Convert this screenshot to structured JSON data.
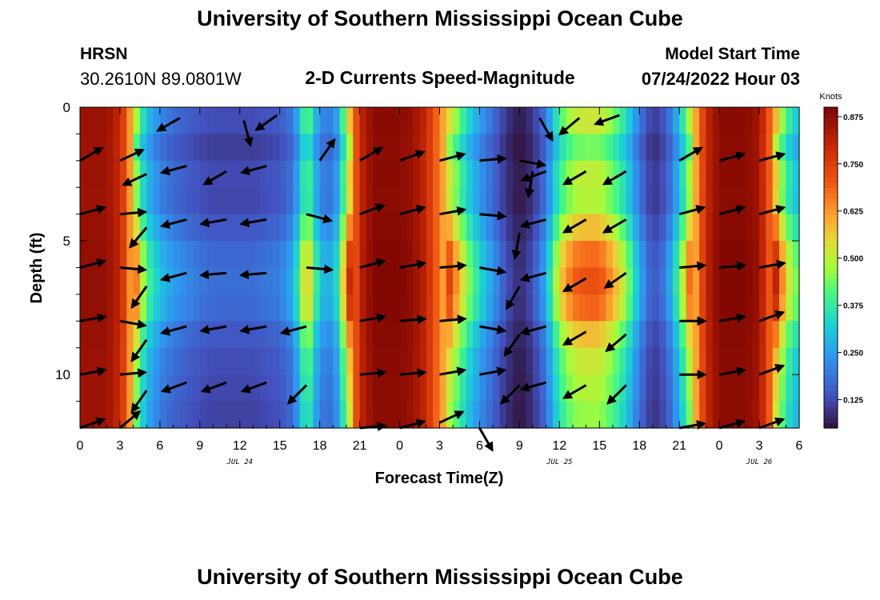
{
  "header": {
    "title": "University of Southern Mississippi Ocean Cube",
    "station": "HRSN",
    "coords": "30.2610N  89.0801W",
    "subtitle": "2-D Currents Speed-Magnitude",
    "model_start_label": "Model Start Time",
    "model_start_value": "07/24/2022 Hour 03"
  },
  "footer": {
    "title": "University of Southern Mississippi Ocean Cube"
  },
  "chart_data": {
    "type": "heatmap",
    "xlabel": "Forecast Time(Z)",
    "ylabel": "Depth (ft)",
    "xlim": [
      0,
      54
    ],
    "ylim": [
      12,
      0
    ],
    "x_ticks": [
      0,
      3,
      6,
      9,
      12,
      15,
      18,
      21,
      24,
      27,
      30,
      33,
      36,
      39,
      42,
      45,
      48,
      51,
      54
    ],
    "x_tick_labels": [
      "0",
      "3",
      "6",
      "9",
      "12",
      "15",
      "18",
      "21",
      "0",
      "3",
      "6",
      "9",
      "12",
      "15",
      "18",
      "21",
      "0",
      "3",
      "6"
    ],
    "y_ticks": [
      0,
      5,
      10
    ],
    "y_tick_labels": [
      "0",
      "5",
      "10"
    ],
    "date_labels": [
      {
        "x": 12,
        "text": "JUL 24"
      },
      {
        "x": 36,
        "text": "JUL 25"
      },
      {
        "x": 51,
        "text": "JUL 26"
      }
    ],
    "colorbar": {
      "title": "Knots",
      "ticks": [
        0.125,
        0.25,
        0.375,
        0.5,
        0.625,
        0.75,
        0.875
      ],
      "tick_labels": [
        "0.125",
        "0.250",
        "0.375",
        "0.500",
        "0.625",
        "0.750",
        "0.875"
      ],
      "range": [
        0.05,
        0.9
      ]
    },
    "speed_profile": {
      "x": [
        0,
        1,
        2,
        3,
        3.5,
        4,
        4.5,
        5,
        6,
        7,
        8,
        9,
        10,
        11,
        12,
        13,
        14,
        15,
        16,
        16.5,
        17,
        18,
        19,
        19.5,
        20,
        21,
        22,
        23,
        24,
        25,
        26,
        27,
        28,
        29,
        30,
        31,
        32,
        33,
        34,
        35,
        36,
        37,
        38,
        39,
        40,
        41,
        42,
        43,
        44,
        45,
        46,
        47,
        48,
        49,
        50,
        51,
        52,
        53,
        54
      ],
      "values": [
        0.86,
        0.86,
        0.86,
        0.8,
        0.7,
        0.55,
        0.4,
        0.3,
        0.22,
        0.18,
        0.16,
        0.14,
        0.13,
        0.13,
        0.13,
        0.13,
        0.14,
        0.15,
        0.2,
        0.3,
        0.45,
        0.22,
        0.2,
        0.3,
        0.5,
        0.8,
        0.88,
        0.88,
        0.88,
        0.86,
        0.8,
        0.65,
        0.5,
        0.35,
        0.25,
        0.18,
        0.1,
        0.06,
        0.1,
        0.2,
        0.4,
        0.5,
        0.52,
        0.52,
        0.45,
        0.35,
        0.2,
        0.1,
        0.15,
        0.3,
        0.55,
        0.8,
        0.88,
        0.88,
        0.88,
        0.85,
        0.65,
        0.4,
        0.3
      ]
    },
    "layer_factor": [
      1.0,
      0.85,
      0.97,
      0.95,
      1.12,
      1.3,
      1.38,
      1.32,
      1.12,
      1.0,
      0.95,
      0.9
    ],
    "arrows": [
      {
        "x": 0,
        "y": 2,
        "dir": 30
      },
      {
        "x": 3,
        "y": 2,
        "dir": 25
      },
      {
        "x": 5,
        "y": 2.5,
        "dir": 205
      },
      {
        "x": 8,
        "y": 2.2,
        "dir": 195
      },
      {
        "x": 11,
        "y": 2.4,
        "dir": 210
      },
      {
        "x": 14,
        "y": 2.2,
        "dir": 195
      },
      {
        "x": 18,
        "y": 2,
        "dir": 55
      },
      {
        "x": 21,
        "y": 2,
        "dir": 30
      },
      {
        "x": 24,
        "y": 2,
        "dir": 20
      },
      {
        "x": 27,
        "y": 2,
        "dir": 15
      },
      {
        "x": 30,
        "y": 2,
        "dir": 5
      },
      {
        "x": 33,
        "y": 2,
        "dir": -10
      },
      {
        "x": 34,
        "y": 2.4,
        "dir": -100
      },
      {
        "x": 35,
        "y": 2.4,
        "dir": 200
      },
      {
        "x": 38,
        "y": 2.4,
        "dir": 210
      },
      {
        "x": 41,
        "y": 2.4,
        "dir": 210
      },
      {
        "x": 45,
        "y": 2,
        "dir": 30
      },
      {
        "x": 48,
        "y": 2,
        "dir": 15
      },
      {
        "x": 51,
        "y": 2,
        "dir": 15
      },
      {
        "x": 0,
        "y": 4,
        "dir": 15
      },
      {
        "x": 3,
        "y": 4,
        "dir": 5
      },
      {
        "x": 5,
        "y": 4.5,
        "dir": 230
      },
      {
        "x": 8,
        "y": 4.2,
        "dir": 195
      },
      {
        "x": 11,
        "y": 4.2,
        "dir": 190
      },
      {
        "x": 14,
        "y": 4.2,
        "dir": 190
      },
      {
        "x": 17,
        "y": 4,
        "dir": -15
      },
      {
        "x": 21,
        "y": 4,
        "dir": 20
      },
      {
        "x": 24,
        "y": 4,
        "dir": 15
      },
      {
        "x": 27,
        "y": 4,
        "dir": 10
      },
      {
        "x": 30,
        "y": 4,
        "dir": -5
      },
      {
        "x": 33,
        "y": 4.7,
        "dir": -100
      },
      {
        "x": 35,
        "y": 4.2,
        "dir": 195
      },
      {
        "x": 38,
        "y": 4.2,
        "dir": 210
      },
      {
        "x": 41,
        "y": 4.2,
        "dir": 210
      },
      {
        "x": 45,
        "y": 4,
        "dir": 15
      },
      {
        "x": 48,
        "y": 4,
        "dir": 15
      },
      {
        "x": 51,
        "y": 4,
        "dir": 15
      },
      {
        "x": 0,
        "y": 6,
        "dir": 15
      },
      {
        "x": 3,
        "y": 6,
        "dir": -5
      },
      {
        "x": 5,
        "y": 6.7,
        "dir": 235
      },
      {
        "x": 8,
        "y": 6.2,
        "dir": 195
      },
      {
        "x": 11,
        "y": 6.2,
        "dir": 185
      },
      {
        "x": 14,
        "y": 6.2,
        "dir": 185
      },
      {
        "x": 17,
        "y": 6,
        "dir": -5
      },
      {
        "x": 21,
        "y": 6,
        "dir": 15
      },
      {
        "x": 24,
        "y": 6,
        "dir": 10
      },
      {
        "x": 27,
        "y": 6,
        "dir": 5
      },
      {
        "x": 30,
        "y": 6,
        "dir": -10
      },
      {
        "x": 33,
        "y": 6.7,
        "dir": -120
      },
      {
        "x": 35,
        "y": 6.2,
        "dir": 195
      },
      {
        "x": 38,
        "y": 6.4,
        "dir": 210
      },
      {
        "x": 41,
        "y": 6.2,
        "dir": 215
      },
      {
        "x": 45,
        "y": 6,
        "dir": 5
      },
      {
        "x": 48,
        "y": 6,
        "dir": 5
      },
      {
        "x": 51,
        "y": 6,
        "dir": 10
      },
      {
        "x": 0,
        "y": 8,
        "dir": 10
      },
      {
        "x": 3,
        "y": 8,
        "dir": -10
      },
      {
        "x": 5,
        "y": 8.7,
        "dir": 235
      },
      {
        "x": 8,
        "y": 8.2,
        "dir": 195
      },
      {
        "x": 11,
        "y": 8.2,
        "dir": 190
      },
      {
        "x": 14,
        "y": 8.2,
        "dir": 190
      },
      {
        "x": 17,
        "y": 8.2,
        "dir": 195
      },
      {
        "x": 21,
        "y": 8,
        "dir": 10
      },
      {
        "x": 24,
        "y": 8,
        "dir": 5
      },
      {
        "x": 27,
        "y": 8,
        "dir": 5
      },
      {
        "x": 30,
        "y": 8.2,
        "dir": -10
      },
      {
        "x": 33,
        "y": 8.5,
        "dir": 235
      },
      {
        "x": 35,
        "y": 8.2,
        "dir": 195
      },
      {
        "x": 38,
        "y": 8.4,
        "dir": 210
      },
      {
        "x": 41,
        "y": 8.5,
        "dir": 220
      },
      {
        "x": 45,
        "y": 8,
        "dir": 0
      },
      {
        "x": 48,
        "y": 8,
        "dir": 10
      },
      {
        "x": 51,
        "y": 8,
        "dir": 20
      },
      {
        "x": 0,
        "y": 10,
        "dir": 10
      },
      {
        "x": 3,
        "y": 10,
        "dir": 5
      },
      {
        "x": 5,
        "y": 10.6,
        "dir": 235
      },
      {
        "x": 8,
        "y": 10.3,
        "dir": 200
      },
      {
        "x": 11,
        "y": 10.3,
        "dir": 200
      },
      {
        "x": 14,
        "y": 10.3,
        "dir": 200
      },
      {
        "x": 17,
        "y": 10.4,
        "dir": 225
      },
      {
        "x": 21,
        "y": 10,
        "dir": 5
      },
      {
        "x": 24,
        "y": 10,
        "dir": 5
      },
      {
        "x": 27,
        "y": 10,
        "dir": 10
      },
      {
        "x": 30,
        "y": 10,
        "dir": 10
      },
      {
        "x": 33,
        "y": 10.4,
        "dir": 225
      },
      {
        "x": 35,
        "y": 10.3,
        "dir": 195
      },
      {
        "x": 38,
        "y": 10.4,
        "dir": 210
      },
      {
        "x": 41,
        "y": 10.4,
        "dir": 225
      },
      {
        "x": 45,
        "y": 10,
        "dir": 0
      },
      {
        "x": 48,
        "y": 10,
        "dir": 10
      },
      {
        "x": 51,
        "y": 10,
        "dir": 20
      },
      {
        "x": 0,
        "y": 12,
        "dir": 20
      },
      {
        "x": 3,
        "y": 12,
        "dir": 40
      },
      {
        "x": 21,
        "y": 12,
        "dir": 5
      },
      {
        "x": 24,
        "y": 12,
        "dir": 15
      },
      {
        "x": 27,
        "y": 11.8,
        "dir": 25
      },
      {
        "x": 30,
        "y": 12,
        "dir": -60
      },
      {
        "x": 45,
        "y": 12,
        "dir": 10
      },
      {
        "x": 48,
        "y": 12,
        "dir": 15
      },
      {
        "x": 51,
        "y": 12,
        "dir": 20
      },
      {
        "x": 7.5,
        "y": 0.4,
        "dir": 210
      },
      {
        "x": 12.3,
        "y": 0.5,
        "dir": -75
      },
      {
        "x": 14.8,
        "y": 0.3,
        "dir": 215
      },
      {
        "x": 34.5,
        "y": 0.4,
        "dir": -60
      },
      {
        "x": 37.5,
        "y": 0.4,
        "dir": 220
      },
      {
        "x": 40.5,
        "y": 0.3,
        "dir": 200
      }
    ]
  }
}
